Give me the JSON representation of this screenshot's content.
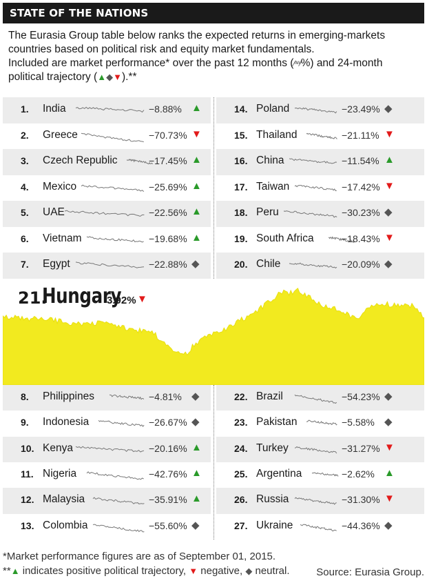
{
  "header": {
    "title": "STATE OF THE NATIONS"
  },
  "intro": {
    "line1": "The Eurasia Group table below ranks the expected returns in emerging-markets",
    "line2": "countries based on political risk and equity market fundamentals.",
    "line3_a": "Included are market performance* over the past 12 months (",
    "line3_b": "%) and 24-month",
    "line4_a": "political trajectory (",
    "line4_b": ").**"
  },
  "colors": {
    "up": "#2a9a2a",
    "down": "#e21a1a",
    "neutral": "#555555",
    "highlight": "#f2ea1f",
    "header": "#1a1a1a"
  },
  "chart_data": {
    "type": "table",
    "columns": [
      "rank",
      "country",
      "market_performance_12m_pct",
      "political_trajectory_24m"
    ],
    "rows": [
      {
        "rank": "1.",
        "country": "India",
        "perf": "−8.88%",
        "value": -8.88,
        "trajectory": "up"
      },
      {
        "rank": "2.",
        "country": "Greece",
        "perf": "−70.73%",
        "value": -70.73,
        "trajectory": "down"
      },
      {
        "rank": "3.",
        "country": "Czech Republic",
        "perf": "−17.45%",
        "value": -17.45,
        "trajectory": "up"
      },
      {
        "rank": "4.",
        "country": "Mexico",
        "perf": "−25.69%",
        "value": -25.69,
        "trajectory": "up"
      },
      {
        "rank": "5.",
        "country": "UAE",
        "perf": "−22.56%",
        "value": -22.56,
        "trajectory": "up"
      },
      {
        "rank": "6.",
        "country": "Vietnam",
        "perf": "−19.68%",
        "value": -19.68,
        "trajectory": "up"
      },
      {
        "rank": "7.",
        "country": "Egypt",
        "perf": "−22.88%",
        "value": -22.88,
        "trajectory": "neutral"
      },
      {
        "rank": "14.",
        "country": "Poland",
        "perf": "−23.49%",
        "value": -23.49,
        "trajectory": "neutral"
      },
      {
        "rank": "15.",
        "country": "Thailand",
        "perf": "−21.11%",
        "value": -21.11,
        "trajectory": "down"
      },
      {
        "rank": "16.",
        "country": "China",
        "perf": "−11.54%",
        "value": -11.54,
        "trajectory": "up"
      },
      {
        "rank": "17.",
        "country": "Taiwan",
        "perf": "−17.42%",
        "value": -17.42,
        "trajectory": "down"
      },
      {
        "rank": "18.",
        "country": "Peru",
        "perf": "−30.23%",
        "value": -30.23,
        "trajectory": "neutral"
      },
      {
        "rank": "19.",
        "country": "South Africa",
        "perf": "−18.43%",
        "value": -18.43,
        "trajectory": "down"
      },
      {
        "rank": "20.",
        "country": "Chile",
        "perf": "−20.09%",
        "value": -20.09,
        "trajectory": "neutral"
      },
      {
        "rank": "21.",
        "country": "Hungary",
        "perf": "3.92%",
        "value": 3.92,
        "trajectory": "down"
      },
      {
        "rank": "8.",
        "country": "Philippines",
        "perf": "−4.81%",
        "value": -4.81,
        "trajectory": "neutral"
      },
      {
        "rank": "9.",
        "country": "Indonesia",
        "perf": "−26.67%",
        "value": -26.67,
        "trajectory": "neutral"
      },
      {
        "rank": "10.",
        "country": "Kenya",
        "perf": "−20.16%",
        "value": -20.16,
        "trajectory": "up"
      },
      {
        "rank": "11.",
        "country": "Nigeria",
        "perf": "−42.76%",
        "value": -42.76,
        "trajectory": "up"
      },
      {
        "rank": "12.",
        "country": "Malaysia",
        "perf": "−35.91%",
        "value": -35.91,
        "trajectory": "up"
      },
      {
        "rank": "13.",
        "country": "Colombia",
        "perf": "−55.60%",
        "value": -55.6,
        "trajectory": "neutral"
      },
      {
        "rank": "22.",
        "country": "Brazil",
        "perf": "−54.23%",
        "value": -54.23,
        "trajectory": "neutral"
      },
      {
        "rank": "23.",
        "country": "Pakistan",
        "perf": "−5.58%",
        "value": -5.58,
        "trajectory": "neutral"
      },
      {
        "rank": "24.",
        "country": "Turkey",
        "perf": "−31.27%",
        "value": -31.27,
        "trajectory": "down"
      },
      {
        "rank": "25.",
        "country": "Argentina",
        "perf": "−2.62%",
        "value": -2.62,
        "trajectory": "up"
      },
      {
        "rank": "26.",
        "country": "Russia",
        "perf": "−31.30%",
        "value": -31.3,
        "trajectory": "down"
      },
      {
        "rank": "27.",
        "country": "Ukraine",
        "perf": "−44.36%",
        "value": -44.36,
        "trajectory": "neutral"
      }
    ]
  },
  "table": {
    "top_left": [
      {
        "rank": "1.",
        "country": "India",
        "perf": "−8.88%",
        "traj": "up"
      },
      {
        "rank": "2.",
        "country": "Greece",
        "perf": "−70.73%",
        "traj": "down"
      },
      {
        "rank": "3.",
        "country": "Czech Republic",
        "perf": "−17.45%",
        "traj": "up"
      },
      {
        "rank": "4.",
        "country": "Mexico",
        "perf": "−25.69%",
        "traj": "up"
      },
      {
        "rank": "5.",
        "country": "UAE",
        "perf": "−22.56%",
        "traj": "up"
      },
      {
        "rank": "6.",
        "country": "Vietnam",
        "perf": "−19.68%",
        "traj": "up"
      },
      {
        "rank": "7.",
        "country": "Egypt",
        "perf": "−22.88%",
        "traj": "neutral"
      }
    ],
    "top_right": [
      {
        "rank": "14.",
        "country": "Poland",
        "perf": "−23.49%",
        "traj": "neutral"
      },
      {
        "rank": "15.",
        "country": "Thailand",
        "perf": "−21.11%",
        "traj": "down"
      },
      {
        "rank": "16.",
        "country": "China",
        "perf": "−11.54%",
        "traj": "up"
      },
      {
        "rank": "17.",
        "country": "Taiwan",
        "perf": "−17.42%",
        "traj": "down"
      },
      {
        "rank": "18.",
        "country": "Peru",
        "perf": "−30.23%",
        "traj": "neutral"
      },
      {
        "rank": "19.",
        "country": "South Africa",
        "perf": "−18.43%",
        "traj": "down"
      },
      {
        "rank": "20.",
        "country": "Chile",
        "perf": "−20.09%",
        "traj": "neutral"
      }
    ],
    "bottom_left": [
      {
        "rank": "8.",
        "country": "Philippines",
        "perf": "−4.81%",
        "traj": "neutral"
      },
      {
        "rank": "9.",
        "country": "Indonesia",
        "perf": "−26.67%",
        "traj": "neutral"
      },
      {
        "rank": "10.",
        "country": "Kenya",
        "perf": "−20.16%",
        "traj": "up"
      },
      {
        "rank": "11.",
        "country": "Nigeria",
        "perf": "−42.76%",
        "traj": "up"
      },
      {
        "rank": "12.",
        "country": "Malaysia",
        "perf": "−35.91%",
        "traj": "up"
      },
      {
        "rank": "13.",
        "country": "Colombia",
        "perf": "−55.60%",
        "traj": "neutral"
      }
    ],
    "bottom_right": [
      {
        "rank": "22.",
        "country": "Brazil",
        "perf": "−54.23%",
        "traj": "neutral"
      },
      {
        "rank": "23.",
        "country": "Pakistan",
        "perf": "−5.58%",
        "traj": "neutral"
      },
      {
        "rank": "24.",
        "country": "Turkey",
        "perf": "−31.27%",
        "traj": "down"
      },
      {
        "rank": "25.",
        "country": "Argentina",
        "perf": "−2.62%",
        "traj": "up"
      },
      {
        "rank": "26.",
        "country": "Russia",
        "perf": "−31.30%",
        "traj": "down"
      },
      {
        "rank": "27.",
        "country": "Ukraine",
        "perf": "−44.36%",
        "traj": "neutral"
      }
    ]
  },
  "hero": {
    "rank": "21.",
    "country": "Hungary",
    "perf": "3.92%",
    "traj": "down"
  },
  "footnotes": {
    "note1": "*Market performance figures are as of September 01, 2015.",
    "note2_prefix": "**",
    "note2_a": " indicates positive political trajectory, ",
    "note2_b": " negative, ",
    "note2_c": " neutral.",
    "source": "Source: Eurasia Group."
  },
  "symbols": {
    "up": "▲",
    "down": "▼",
    "neutral": "◆",
    "mini_chart": "⁄ⁿʷ⁄"
  }
}
